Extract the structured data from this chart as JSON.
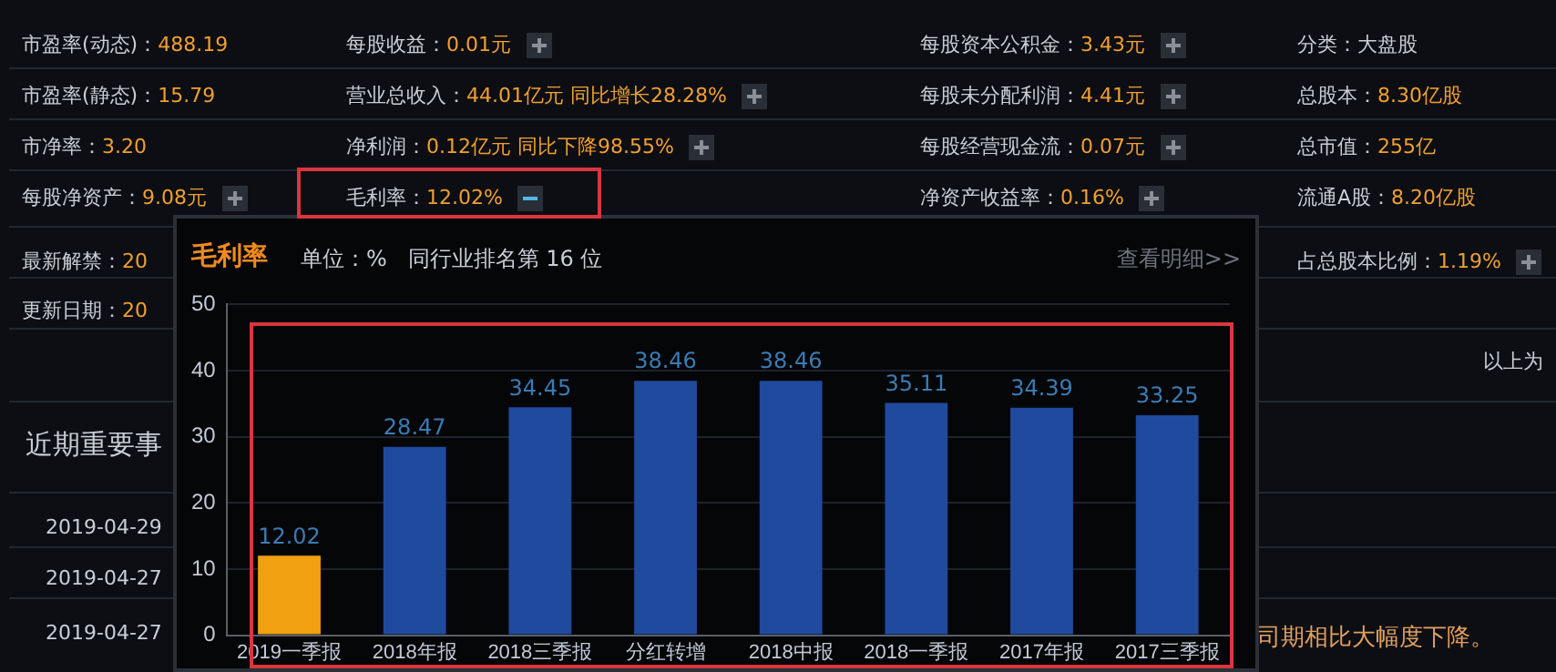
{
  "chart_data": {
    "type": "bar",
    "title": "毛利率",
    "subtitle": "单位：%   同行业排名第 16 位",
    "categories": [
      "2019一季报",
      "2018年报",
      "2018三季报",
      "分红转增",
      "2018中报",
      "2018一季报",
      "2017年报",
      "2017三季报"
    ],
    "values": [
      12.02,
      28.47,
      34.45,
      38.46,
      38.46,
      35.11,
      34.39,
      33.25
    ],
    "colors": [
      "#f0a010",
      "#1f4a9e",
      "#1f4a9e",
      "#1f4a9e",
      "#1f4a9e",
      "#1f4a9e",
      "#1f4a9e",
      "#1f4a9e"
    ],
    "ylim": [
      0,
      50
    ],
    "yticks": [
      0,
      10,
      20,
      30,
      40,
      50
    ],
    "grid": "y",
    "data_labels": true,
    "legend": false,
    "annotations": [
      "市盈率(动态)：488.19",
      "每股收益：0.01元",
      "每股资本公积金：3.43元",
      "分类：大盘股",
      "市盈率(静态)：15.79",
      "营业总收入：44.01亿元 同比增长28.28%",
      "每股未分配利润：4.41元",
      "总股本：8.30亿股",
      "市净率：3.20",
      "净利润：0.12亿元 同比下降98.55%",
      "每股经营现金流：0.07元",
      "总市值：255亿",
      "每股净资产：9.08元",
      "毛利率：12.02%",
      "净资产收益率：0.16%",
      "流通A股：8.20亿股",
      "最新解禁：20",
      "占总股本比例：1.19%",
      "更新日期：20",
      "以上为",
      "近期重要事",
      "2019-04-29",
      "2019-04-27",
      "2019-04-27",
      "司期相比大幅度下降。",
      "查看明细>>"
    ]
  }
}
